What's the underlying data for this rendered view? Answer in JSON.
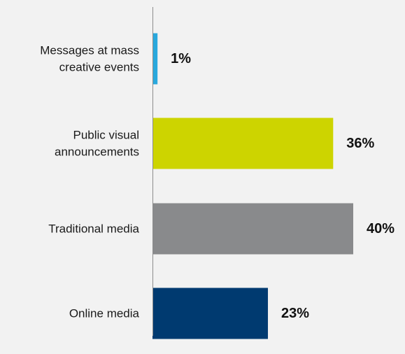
{
  "chart_data": {
    "type": "bar",
    "orientation": "horizontal",
    "categories": [
      [
        "Messages at mass",
        "creative events"
      ],
      [
        "Public visual",
        "announcements"
      ],
      [
        "Traditional media"
      ],
      [
        "Online media"
      ]
    ],
    "values": [
      1,
      36,
      40,
      23
    ],
    "value_labels": [
      "1%",
      "36%",
      "40%",
      "23%"
    ],
    "colors": [
      "#29a8dd",
      "#cdd400",
      "#898a8c",
      "#003a70"
    ],
    "xlim": [
      0,
      40
    ],
    "grid": false,
    "legend": "none"
  }
}
